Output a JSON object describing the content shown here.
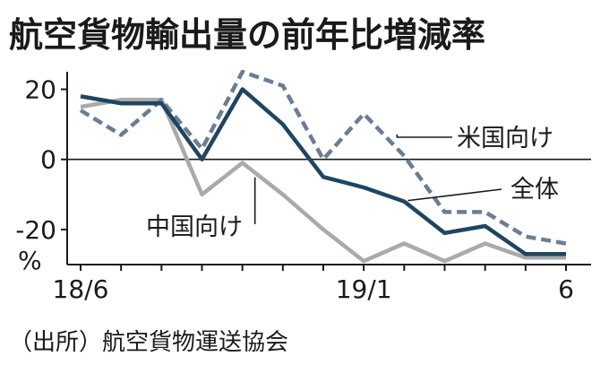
{
  "chart_data": {
    "type": "line",
    "title": "航空貨物輸出量の前年比増減率",
    "source": "（出所）航空貨物運送協会",
    "ylabel": "%",
    "ylim": [
      -30,
      25
    ],
    "y_ticks": [
      20,
      0,
      -20
    ],
    "y_tick_labels": [
      "20",
      "0",
      "-20"
    ],
    "x_tick_labels": [
      "18/6",
      "19/1",
      "6"
    ],
    "x_tick_positions": [
      0,
      7,
      12
    ],
    "x": [
      0,
      1,
      2,
      3,
      4,
      5,
      6,
      7,
      8,
      9,
      10,
      11,
      12
    ],
    "grid": false,
    "zero_line": true,
    "series": [
      {
        "name": "米国向け",
        "color": "#6b7d93",
        "style": "dashed",
        "values": [
          14,
          7,
          17,
          3,
          25,
          21,
          0,
          13,
          1,
          -15,
          -15,
          -22,
          -24
        ]
      },
      {
        "name": "全体",
        "color": "#1f4560",
        "style": "solid",
        "values": [
          18,
          16,
          16,
          0,
          20,
          10,
          -5,
          -8,
          -12,
          -21,
          -19,
          -27,
          -27
        ]
      },
      {
        "name": "中国向け",
        "color": "#aaaaaa",
        "style": "solid",
        "values": [
          15,
          17,
          17,
          -10,
          -1,
          -10,
          -20,
          -29,
          -24,
          -29,
          -24,
          -28,
          -28
        ]
      }
    ]
  }
}
